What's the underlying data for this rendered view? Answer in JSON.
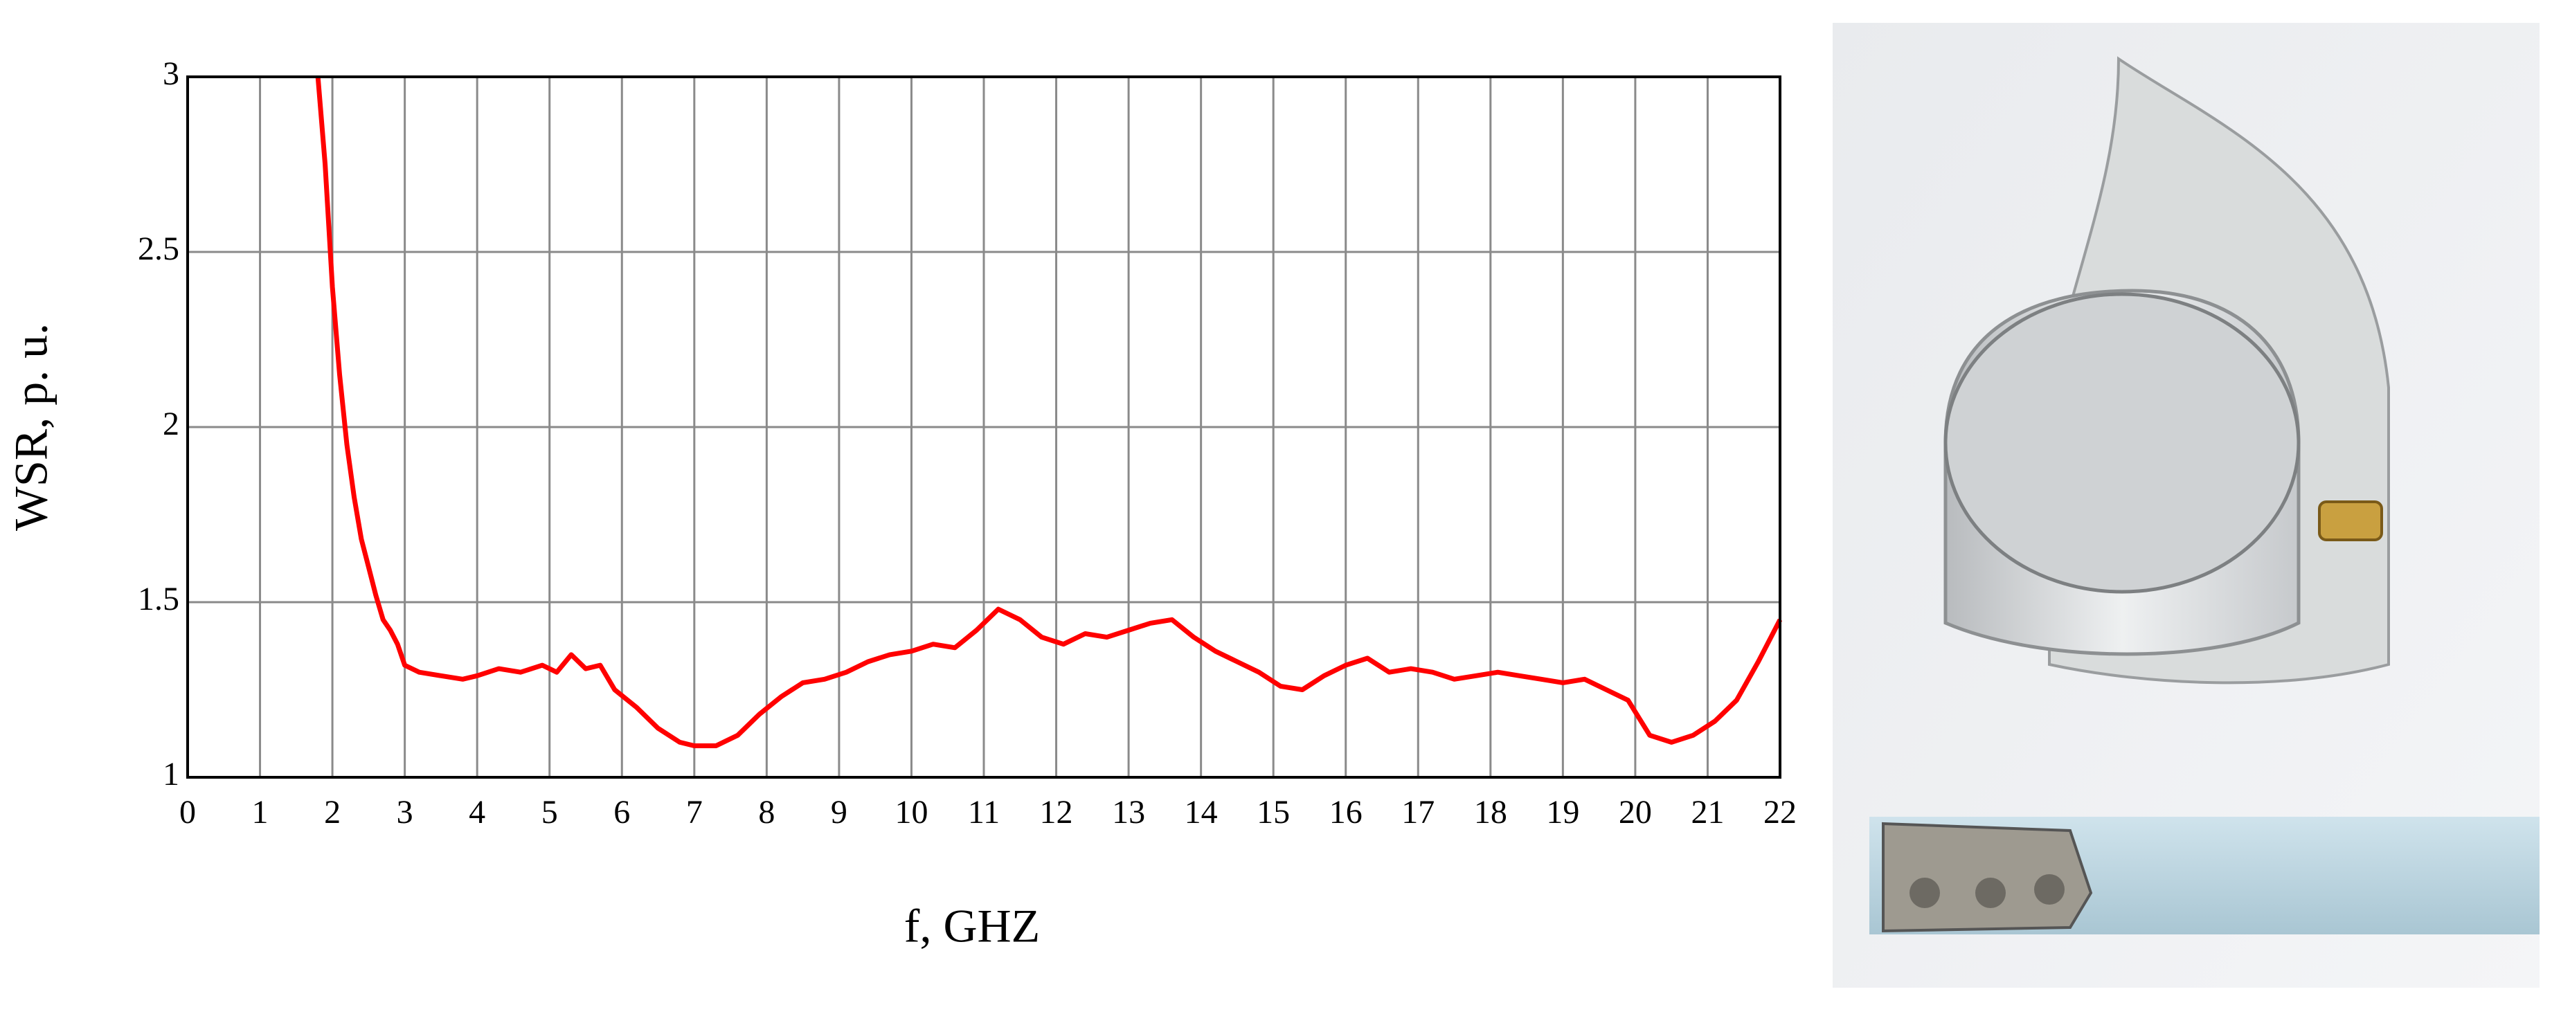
{
  "chart_data": {
    "type": "line",
    "xlabel": "f, GHZ",
    "ylabel": "WSR, p. u.",
    "x": [
      1.8,
      1.9,
      2.0,
      2.1,
      2.2,
      2.3,
      2.4,
      2.5,
      2.6,
      2.7,
      2.8,
      2.9,
      3.0,
      3.2,
      3.5,
      3.8,
      4.0,
      4.3,
      4.6,
      4.9,
      5.1,
      5.3,
      5.5,
      5.7,
      5.9,
      6.2,
      6.5,
      6.8,
      7.0,
      7.3,
      7.6,
      7.9,
      8.2,
      8.5,
      8.8,
      9.1,
      9.4,
      9.7,
      10.0,
      10.3,
      10.6,
      10.9,
      11.2,
      11.5,
      11.8,
      12.1,
      12.4,
      12.7,
      13.0,
      13.3,
      13.6,
      13.9,
      14.2,
      14.5,
      14.8,
      15.1,
      15.4,
      15.7,
      16.0,
      16.3,
      16.6,
      16.9,
      17.2,
      17.5,
      17.8,
      18.1,
      18.4,
      18.7,
      19.0,
      19.3,
      19.6,
      19.9,
      20.2,
      20.5,
      20.8,
      21.1,
      21.4,
      21.7,
      22.0
    ],
    "values": [
      3.0,
      2.75,
      2.4,
      2.15,
      1.95,
      1.8,
      1.68,
      1.6,
      1.52,
      1.45,
      1.42,
      1.38,
      1.32,
      1.3,
      1.29,
      1.28,
      1.29,
      1.31,
      1.3,
      1.32,
      1.3,
      1.35,
      1.31,
      1.32,
      1.25,
      1.2,
      1.14,
      1.1,
      1.09,
      1.09,
      1.12,
      1.18,
      1.23,
      1.27,
      1.28,
      1.3,
      1.33,
      1.35,
      1.36,
      1.38,
      1.37,
      1.42,
      1.48,
      1.45,
      1.4,
      1.38,
      1.41,
      1.4,
      1.42,
      1.44,
      1.45,
      1.4,
      1.36,
      1.33,
      1.3,
      1.26,
      1.25,
      1.29,
      1.32,
      1.34,
      1.3,
      1.31,
      1.3,
      1.28,
      1.29,
      1.3,
      1.29,
      1.28,
      1.27,
      1.28,
      1.25,
      1.22,
      1.12,
      1.1,
      1.12,
      1.16,
      1.22,
      1.33,
      1.45
    ],
    "color": "#ff0000",
    "xlim": [
      0,
      22
    ],
    "xticks": [
      0,
      1,
      2,
      3,
      4,
      5,
      6,
      7,
      8,
      9,
      10,
      11,
      12,
      13,
      14,
      15,
      16,
      17,
      18,
      19,
      20,
      21,
      22
    ],
    "ylim": [
      1,
      3
    ],
    "yticks": [
      1,
      1.5,
      2,
      2.5,
      3
    ],
    "grid": true
  }
}
